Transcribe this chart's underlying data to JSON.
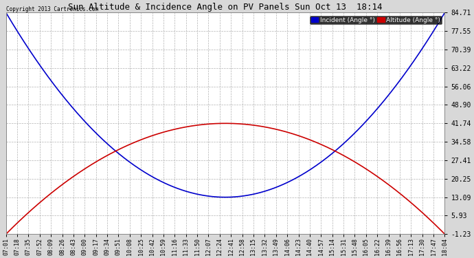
{
  "title": "Sun Altitude & Incidence Angle on PV Panels Sun Oct 13  18:14",
  "copyright": "Copyright 2013 Cartronics.com",
  "background_color": "#d8d8d8",
  "plot_bg_color": "#ffffff",
  "grid_color": "#aaaaaa",
  "yticks": [
    -1.23,
    5.93,
    13.09,
    20.25,
    27.41,
    34.58,
    41.74,
    48.9,
    56.06,
    63.22,
    70.39,
    77.55,
    84.71
  ],
  "ylim_min": -1.23,
  "ylim_max": 84.71,
  "x_labels": [
    "07:01",
    "07:18",
    "07:35",
    "07:52",
    "08:09",
    "08:26",
    "08:43",
    "09:00",
    "09:17",
    "09:34",
    "09:51",
    "10:08",
    "10:25",
    "10:42",
    "10:59",
    "11:16",
    "11:33",
    "11:50",
    "12:07",
    "12:24",
    "12:41",
    "12:58",
    "13:15",
    "13:32",
    "13:49",
    "14:06",
    "14:23",
    "14:40",
    "14:57",
    "15:14",
    "15:31",
    "15:48",
    "16:05",
    "16:22",
    "16:39",
    "16:56",
    "17:13",
    "17:30",
    "17:47",
    "18:04"
  ],
  "incident_color": "#0000cc",
  "altitude_color": "#cc0000",
  "title_fontsize": 9,
  "tick_fontsize": 7,
  "xtick_fontsize": 6
}
